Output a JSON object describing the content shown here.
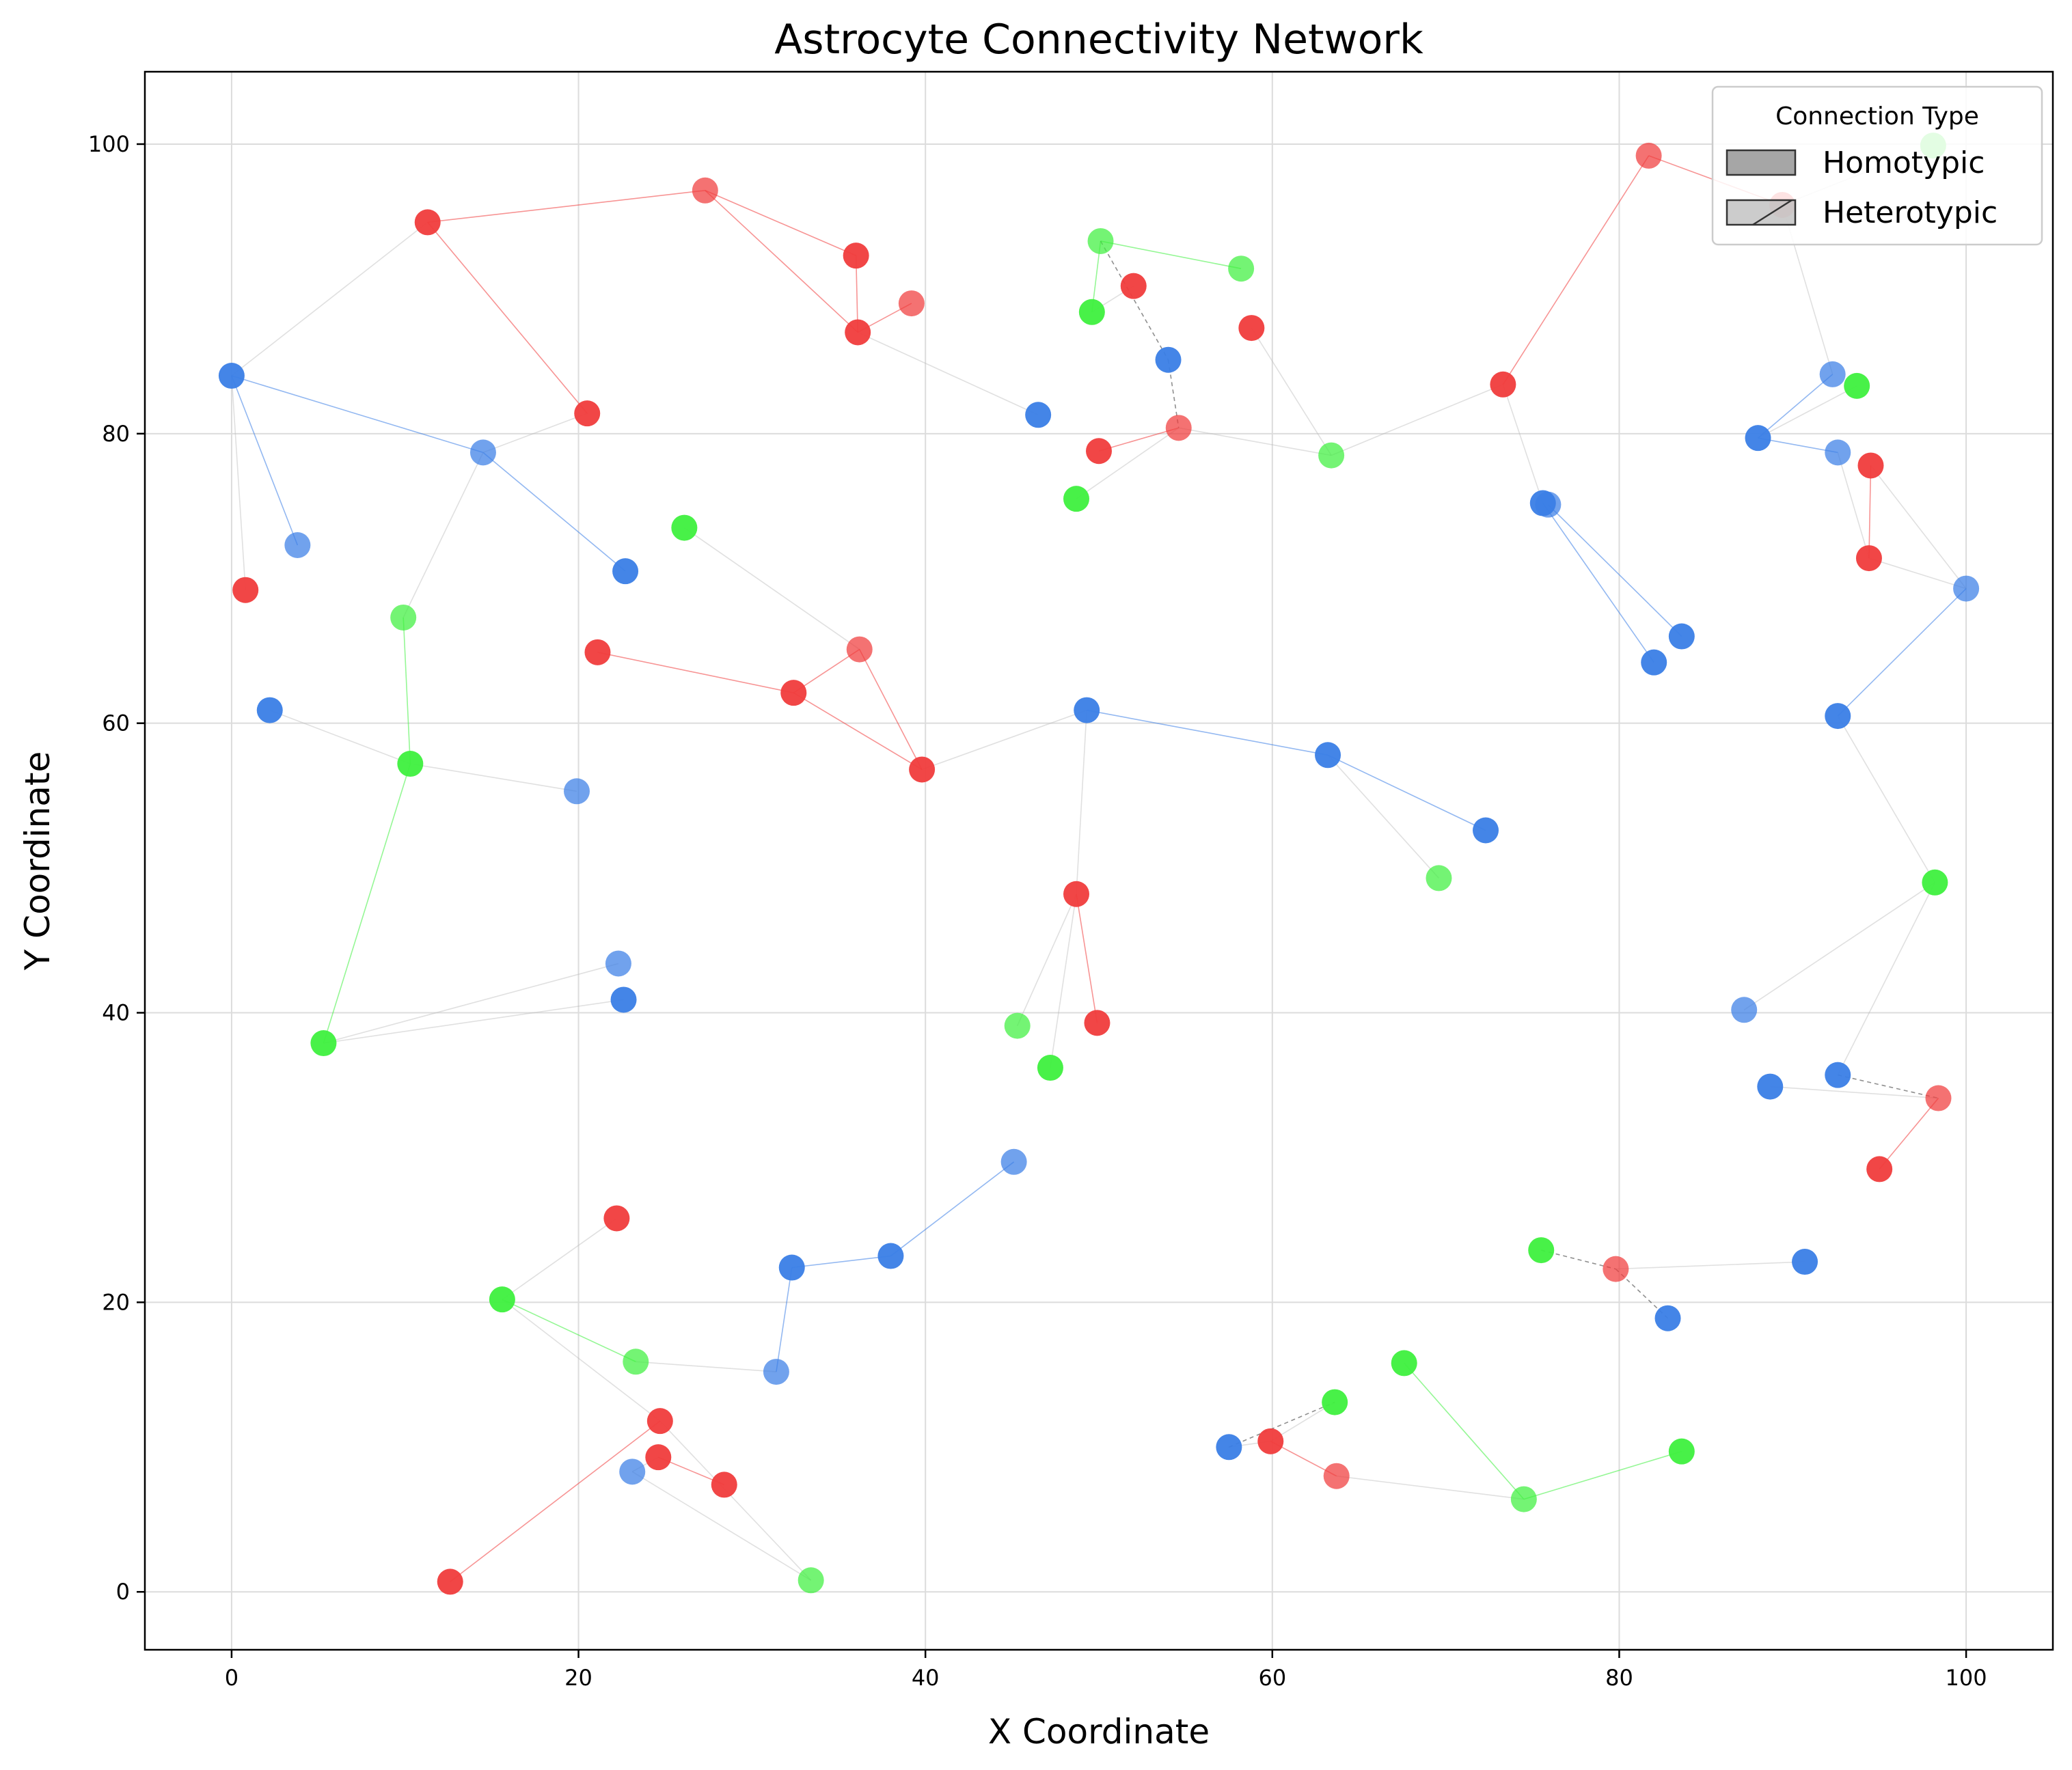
{
  "chart_data": {
    "type": "scatter",
    "title": "Astrocyte Connectivity Network",
    "xlabel": "X Coordinate",
    "ylabel": "Y Coordinate",
    "xlim": [
      -5,
      105
    ],
    "ylim": [
      -4,
      105
    ],
    "xticks": [
      0,
      20,
      40,
      60,
      80,
      100
    ],
    "yticks": [
      0,
      20,
      40,
      60,
      80,
      100
    ],
    "grid": true,
    "legend": {
      "title": "Connection Type",
      "placement": "top-right",
      "entries": [
        "Homotypic",
        "Heterotypic"
      ]
    },
    "colors": {
      "red": "#f03c3c",
      "blue": "#3a7ee6",
      "green": "#3ef03e"
    },
    "nodes": [
      {
        "x": 0,
        "y": 84,
        "c": "blue"
      },
      {
        "x": 3.8,
        "y": 72.3,
        "c": "blue"
      },
      {
        "x": 0.8,
        "y": 69.2,
        "c": "red"
      },
      {
        "x": 11.3,
        "y": 94.6,
        "c": "red"
      },
      {
        "x": 14.5,
        "y": 78.7,
        "c": "blue"
      },
      {
        "x": 20.5,
        "y": 81.4,
        "c": "red"
      },
      {
        "x": 22.7,
        "y": 70.5,
        "c": "blue"
      },
      {
        "x": 27.3,
        "y": 96.8,
        "c": "red"
      },
      {
        "x": 36.0,
        "y": 92.3,
        "c": "red"
      },
      {
        "x": 36.1,
        "y": 87.0,
        "c": "red"
      },
      {
        "x": 39.2,
        "y": 89.0,
        "c": "red"
      },
      {
        "x": 46.5,
        "y": 81.3,
        "c": "blue"
      },
      {
        "x": 26.1,
        "y": 73.5,
        "c": "green"
      },
      {
        "x": 9.9,
        "y": 67.3,
        "c": "green"
      },
      {
        "x": 2.2,
        "y": 60.9,
        "c": "blue"
      },
      {
        "x": 10.3,
        "y": 57.2,
        "c": "green"
      },
      {
        "x": 19.9,
        "y": 55.3,
        "c": "blue"
      },
      {
        "x": 21.1,
        "y": 64.9,
        "c": "red"
      },
      {
        "x": 32.4,
        "y": 62.1,
        "c": "red"
      },
      {
        "x": 36.2,
        "y": 65.1,
        "c": "red"
      },
      {
        "x": 39.8,
        "y": 56.8,
        "c": "red"
      },
      {
        "x": 49.3,
        "y": 60.9,
        "c": "blue"
      },
      {
        "x": 50.1,
        "y": 93.3,
        "c": "green"
      },
      {
        "x": 49.6,
        "y": 88.4,
        "c": "green"
      },
      {
        "x": 52.0,
        "y": 90.2,
        "c": "red"
      },
      {
        "x": 58.2,
        "y": 91.4,
        "c": "green"
      },
      {
        "x": 54.0,
        "y": 85.1,
        "c": "blue"
      },
      {
        "x": 58.8,
        "y": 87.3,
        "c": "red"
      },
      {
        "x": 54.6,
        "y": 80.4,
        "c": "red"
      },
      {
        "x": 50.0,
        "y": 78.8,
        "c": "red"
      },
      {
        "x": 48.7,
        "y": 75.5,
        "c": "green"
      },
      {
        "x": 63.4,
        "y": 78.5,
        "c": "green"
      },
      {
        "x": 63.2,
        "y": 57.8,
        "c": "blue"
      },
      {
        "x": 72.3,
        "y": 52.6,
        "c": "blue"
      },
      {
        "x": 69.6,
        "y": 49.3,
        "c": "green"
      },
      {
        "x": 73.3,
        "y": 83.4,
        "c": "red"
      },
      {
        "x": 75.6,
        "y": 75.2,
        "c": "blue"
      },
      {
        "x": 75.9,
        "y": 75.1,
        "c": "blue"
      },
      {
        "x": 82.0,
        "y": 64.2,
        "c": "blue"
      },
      {
        "x": 83.6,
        "y": 66.0,
        "c": "blue"
      },
      {
        "x": 81.7,
        "y": 99.2,
        "c": "red"
      },
      {
        "x": 89.4,
        "y": 95.8,
        "c": "red"
      },
      {
        "x": 98.1,
        "y": 99.9,
        "c": "green"
      },
      {
        "x": 92.3,
        "y": 84.1,
        "c": "blue"
      },
      {
        "x": 93.7,
        "y": 83.3,
        "c": "green"
      },
      {
        "x": 88.0,
        "y": 79.7,
        "c": "blue"
      },
      {
        "x": 92.6,
        "y": 78.7,
        "c": "blue"
      },
      {
        "x": 94.5,
        "y": 77.8,
        "c": "red"
      },
      {
        "x": 94.4,
        "y": 71.4,
        "c": "red"
      },
      {
        "x": 100.0,
        "y": 69.3,
        "c": "blue"
      },
      {
        "x": 92.6,
        "y": 60.5,
        "c": "blue"
      },
      {
        "x": 98.2,
        "y": 49.0,
        "c": "green"
      },
      {
        "x": 87.2,
        "y": 40.2,
        "c": "blue"
      },
      {
        "x": 92.6,
        "y": 35.7,
        "c": "blue"
      },
      {
        "x": 88.7,
        "y": 34.9,
        "c": "blue"
      },
      {
        "x": 98.4,
        "y": 34.1,
        "c": "red"
      },
      {
        "x": 95.0,
        "y": 29.2,
        "c": "red"
      },
      {
        "x": 48.7,
        "y": 48.2,
        "c": "red"
      },
      {
        "x": 45.3,
        "y": 39.1,
        "c": "green"
      },
      {
        "x": 47.2,
        "y": 36.2,
        "c": "green"
      },
      {
        "x": 49.9,
        "y": 39.3,
        "c": "red"
      },
      {
        "x": 22.3,
        "y": 43.4,
        "c": "blue"
      },
      {
        "x": 22.6,
        "y": 40.9,
        "c": "blue"
      },
      {
        "x": 5.3,
        "y": 37.9,
        "c": "green"
      },
      {
        "x": 45.1,
        "y": 29.7,
        "c": "blue"
      },
      {
        "x": 38.0,
        "y": 23.2,
        "c": "blue"
      },
      {
        "x": 32.3,
        "y": 22.4,
        "c": "blue"
      },
      {
        "x": 31.4,
        "y": 15.2,
        "c": "blue"
      },
      {
        "x": 22.2,
        "y": 25.8,
        "c": "red"
      },
      {
        "x": 15.6,
        "y": 20.2,
        "c": "green"
      },
      {
        "x": 23.3,
        "y": 15.9,
        "c": "green"
      },
      {
        "x": 24.7,
        "y": 11.8,
        "c": "red"
      },
      {
        "x": 24.6,
        "y": 9.3,
        "c": "red"
      },
      {
        "x": 23.1,
        "y": 8.3,
        "c": "blue"
      },
      {
        "x": 12.6,
        "y": 0.7,
        "c": "red"
      },
      {
        "x": 28.4,
        "y": 7.4,
        "c": "red"
      },
      {
        "x": 33.4,
        "y": 0.8,
        "c": "green"
      },
      {
        "x": 57.5,
        "y": 10.0,
        "c": "blue"
      },
      {
        "x": 59.9,
        "y": 10.4,
        "c": "red"
      },
      {
        "x": 63.7,
        "y": 8.0,
        "c": "red"
      },
      {
        "x": 63.6,
        "y": 13.1,
        "c": "green"
      },
      {
        "x": 67.6,
        "y": 15.8,
        "c": "green"
      },
      {
        "x": 74.5,
        "y": 6.4,
        "c": "green"
      },
      {
        "x": 83.6,
        "y": 9.7,
        "c": "green"
      },
      {
        "x": 75.5,
        "y": 23.6,
        "c": "green"
      },
      {
        "x": 79.8,
        "y": 22.3,
        "c": "red"
      },
      {
        "x": 82.8,
        "y": 18.9,
        "c": "blue"
      },
      {
        "x": 90.7,
        "y": 22.8,
        "c": "blue"
      }
    ],
    "edges": [
      [
        0,
        1
      ],
      [
        0,
        2
      ],
      [
        0,
        3
      ],
      [
        0,
        4
      ],
      [
        3,
        7
      ],
      [
        3,
        5
      ],
      [
        4,
        5
      ],
      [
        4,
        6
      ],
      [
        4,
        13
      ],
      [
        7,
        8
      ],
      [
        7,
        9
      ],
      [
        8,
        9
      ],
      [
        9,
        10
      ],
      [
        9,
        11
      ],
      [
        12,
        19
      ],
      [
        13,
        15
      ],
      [
        14,
        15
      ],
      [
        15,
        16
      ],
      [
        15,
        63
      ],
      [
        17,
        18
      ],
      [
        18,
        19
      ],
      [
        18,
        20
      ],
      [
        19,
        20
      ],
      [
        20,
        21
      ],
      [
        21,
        32
      ],
      [
        21,
        57
      ],
      [
        22,
        23
      ],
      [
        22,
        25
      ],
      [
        22,
        26
      ],
      [
        23,
        24
      ],
      [
        26,
        28
      ],
      [
        27,
        31
      ],
      [
        28,
        29
      ],
      [
        28,
        30
      ],
      [
        28,
        31
      ],
      [
        31,
        35
      ],
      [
        32,
        33
      ],
      [
        32,
        34
      ],
      [
        35,
        36
      ],
      [
        36,
        38
      ],
      [
        37,
        39
      ],
      [
        35,
        40
      ],
      [
        40,
        41
      ],
      [
        41,
        42
      ],
      [
        41,
        43
      ],
      [
        43,
        45
      ],
      [
        44,
        45
      ],
      [
        45,
        46
      ],
      [
        46,
        48
      ],
      [
        47,
        48
      ],
      [
        48,
        49
      ],
      [
        47,
        49
      ],
      [
        49,
        50
      ],
      [
        50,
        51
      ],
      [
        51,
        52
      ],
      [
        51,
        53
      ],
      [
        53,
        55
      ],
      [
        54,
        55
      ],
      [
        55,
        56
      ],
      [
        57,
        58
      ],
      [
        57,
        59
      ],
      [
        57,
        60
      ],
      [
        61,
        63
      ],
      [
        62,
        63
      ],
      [
        64,
        65
      ],
      [
        65,
        66
      ],
      [
        66,
        67
      ],
      [
        67,
        70
      ],
      [
        68,
        69
      ],
      [
        69,
        70
      ],
      [
        69,
        71
      ],
      [
        71,
        74
      ],
      [
        72,
        73
      ],
      [
        73,
        76
      ],
      [
        72,
        75
      ],
      [
        76,
        71
      ],
      [
        77,
        78
      ],
      [
        78,
        79
      ],
      [
        78,
        80
      ],
      [
        77,
        80
      ],
      [
        81,
        82
      ],
      [
        82,
        83
      ],
      [
        82,
        79
      ],
      [
        84,
        85
      ],
      [
        85,
        86
      ],
      [
        85,
        87
      ]
    ],
    "dark_edges": [
      [
        22,
        26
      ],
      [
        26,
        28
      ],
      [
        53,
        55
      ],
      [
        84,
        85
      ],
      [
        85,
        86
      ],
      [
        77,
        80
      ]
    ]
  }
}
